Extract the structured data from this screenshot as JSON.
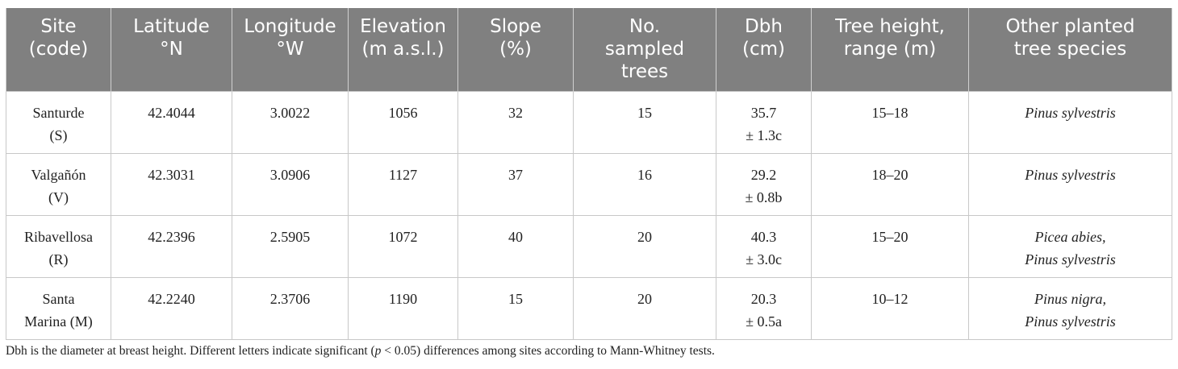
{
  "table": {
    "headers": [
      [
        "Site",
        "(code)"
      ],
      [
        "Latitude",
        "°N"
      ],
      [
        "Longitude",
        "°W"
      ],
      [
        "Elevation",
        "(m a.s.l.)"
      ],
      [
        "Slope",
        "(%)"
      ],
      [
        "No.",
        "sampled",
        "trees"
      ],
      [
        "Dbh",
        "(cm)"
      ],
      [
        "Tree height,",
        "range (m)"
      ],
      [
        "Other planted",
        "tree species"
      ]
    ],
    "rows": [
      {
        "site": [
          "Santurde",
          "(S)"
        ],
        "lat": "42.4044",
        "lon": "3.0022",
        "elev": "1056",
        "slope": "32",
        "trees": "15",
        "dbh": [
          "35.7",
          "± 1.3c"
        ],
        "height": "15–18",
        "species": [
          "Pinus sylvestris"
        ]
      },
      {
        "site": [
          "Valgañón",
          "(V)"
        ],
        "lat": "42.3031",
        "lon": "3.0906",
        "elev": "1127",
        "slope": "37",
        "trees": "16",
        "dbh": [
          "29.2",
          "± 0.8b"
        ],
        "height": "18–20",
        "species": [
          "Pinus sylvestris"
        ]
      },
      {
        "site": [
          "Ribavellosa",
          "(R)"
        ],
        "lat": "42.2396",
        "lon": "2.5905",
        "elev": "1072",
        "slope": "40",
        "trees": "20",
        "dbh": [
          "40.3",
          "± 3.0c"
        ],
        "height": "15–20",
        "species": [
          "Picea abies,",
          "Pinus sylvestris"
        ]
      },
      {
        "site": [
          "Santa",
          "Marina (M)"
        ],
        "lat": "42.2240",
        "lon": "2.3706",
        "elev": "1190",
        "slope": "15",
        "trees": "20",
        "dbh": [
          "20.3",
          "± 0.5a"
        ],
        "height": "10–12",
        "species": [
          "Pinus nigra,",
          "Pinus sylvestris"
        ]
      }
    ]
  },
  "footnote": {
    "part1": "Dbh is the diameter at breast height. Different letters indicate significant (",
    "p": "p",
    "part2": " < 0.05) differences among sites according to Mann-Whitney tests."
  }
}
